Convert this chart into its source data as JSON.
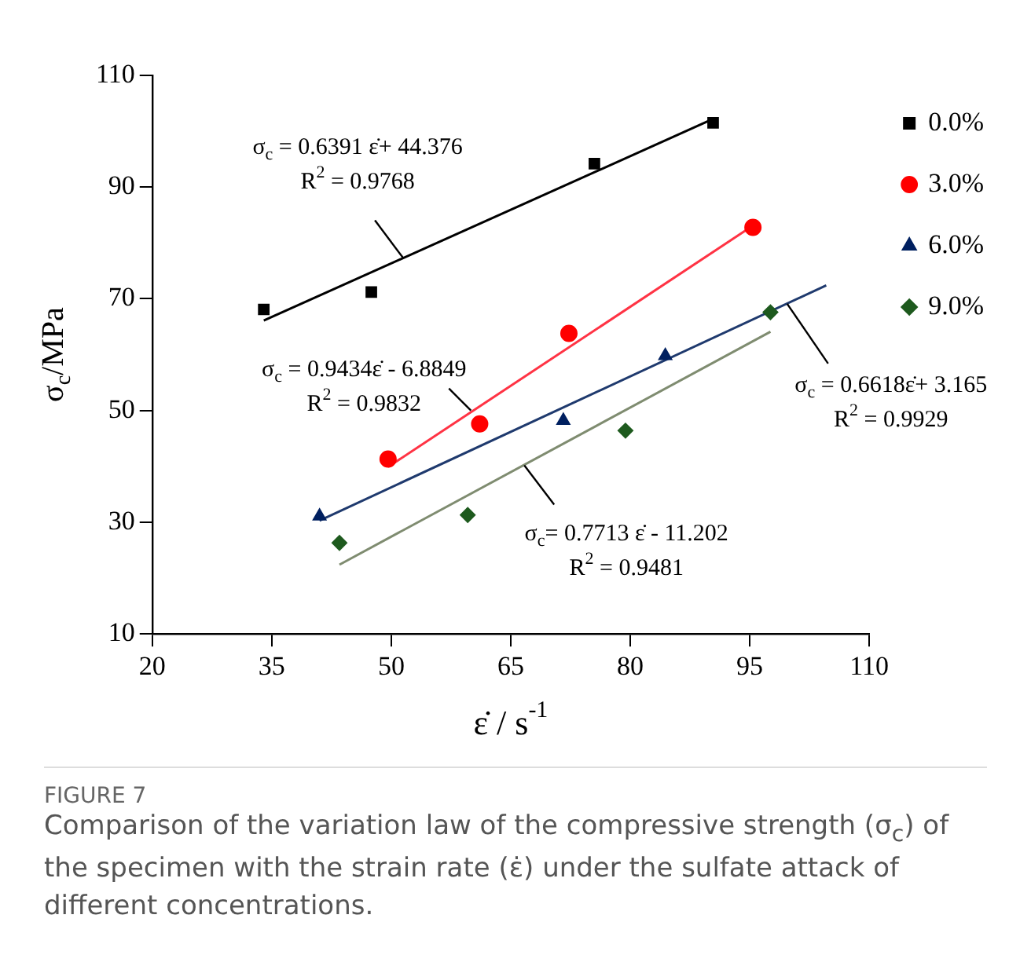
{
  "chart_data": {
    "type": "scatter",
    "title": "FIGURE 7",
    "subtitle": "Comparison of the variation law of the compressive strength (σ$_{c}$) of the specimen with the strain rate (ε̇) under the sulfate attack of different concentrations.",
    "xlabel": "ε̇ / s$^{-1}$",
    "ylabel": "σ$_{c}$/MPa",
    "xlim": [
      20,
      110
    ],
    "xticks": [
      20,
      35,
      50,
      65,
      80,
      95,
      110
    ],
    "ylim": [
      10,
      110
    ],
    "yticks": [
      10,
      30,
      50,
      70,
      90,
      110
    ],
    "grid": false,
    "legend": "top right",
    "series": [
      {
        "name": "0.0%",
        "marker": "square",
        "color": "#000000",
        "x": [
          34.0,
          47.5,
          75.5,
          90.4
        ],
        "values": [
          68.1,
          71.2,
          94.2,
          101.5
        ]
      },
      {
        "name": "3.0%",
        "marker": "circle",
        "color": "#ff0000",
        "x": [
          49.6,
          61.1,
          72.3,
          95.4
        ],
        "values": [
          41.3,
          47.6,
          63.8,
          82.8
        ]
      },
      {
        "name": "6.0%",
        "marker": "triangle",
        "color": "#002060",
        "x": [
          41.0,
          71.6,
          84.4
        ],
        "values": [
          31.1,
          48.2,
          59.8
        ]
      },
      {
        "name": "9.0%",
        "marker": "diamond",
        "color": "#1e5a1e",
        "x": [
          43.5,
          59.6,
          79.4,
          97.6
        ],
        "values": [
          26.3,
          31.3,
          46.4,
          67.6
        ]
      },
      {
        "type": "line",
        "marker": "none",
        "color": "#000000",
        "x": [
          34.0,
          90.4
        ],
        "values": [
          66.1,
          102.2
        ]
      },
      {
        "type": "line",
        "marker": "none",
        "color": "#ff3344",
        "x": [
          49.6,
          95.4
        ],
        "values": [
          39.9,
          83.1
        ]
      },
      {
        "type": "line",
        "marker": "none",
        "color": "#1f3a6e",
        "x": [
          41.0,
          104.6
        ],
        "values": [
          30.3,
          72.4
        ]
      },
      {
        "type": "line",
        "marker": "none",
        "color": "#7f8c70",
        "x": [
          43.5,
          97.6
        ],
        "values": [
          22.4,
          64.1
        ]
      }
    ],
    "annotations": [
      {
        "text": "σ$_{c}$ = 0.6391 ε̇+ 44.376\nR$^{2}$ = 0.9768",
        "x": 51.5,
        "y": 77.3
      },
      {
        "text": "σ$_{c}$ = 0.9434ε̇ - 6.8849\nR$^{2}$ = 0.9832",
        "x": 60,
        "y": 50
      },
      {
        "text": "σ$_{c}$ = 0.6618ε̇+ 3.165\nR$^{2}$ = 0.9929",
        "x": 99.7,
        "y": 69.1
      },
      {
        "text": "σ$_{c}$= 0.7713 ε̇ - 11.202\nR$^{2}$ = 0.9481",
        "x": 66.7,
        "y": 40.2
      }
    ]
  }
}
